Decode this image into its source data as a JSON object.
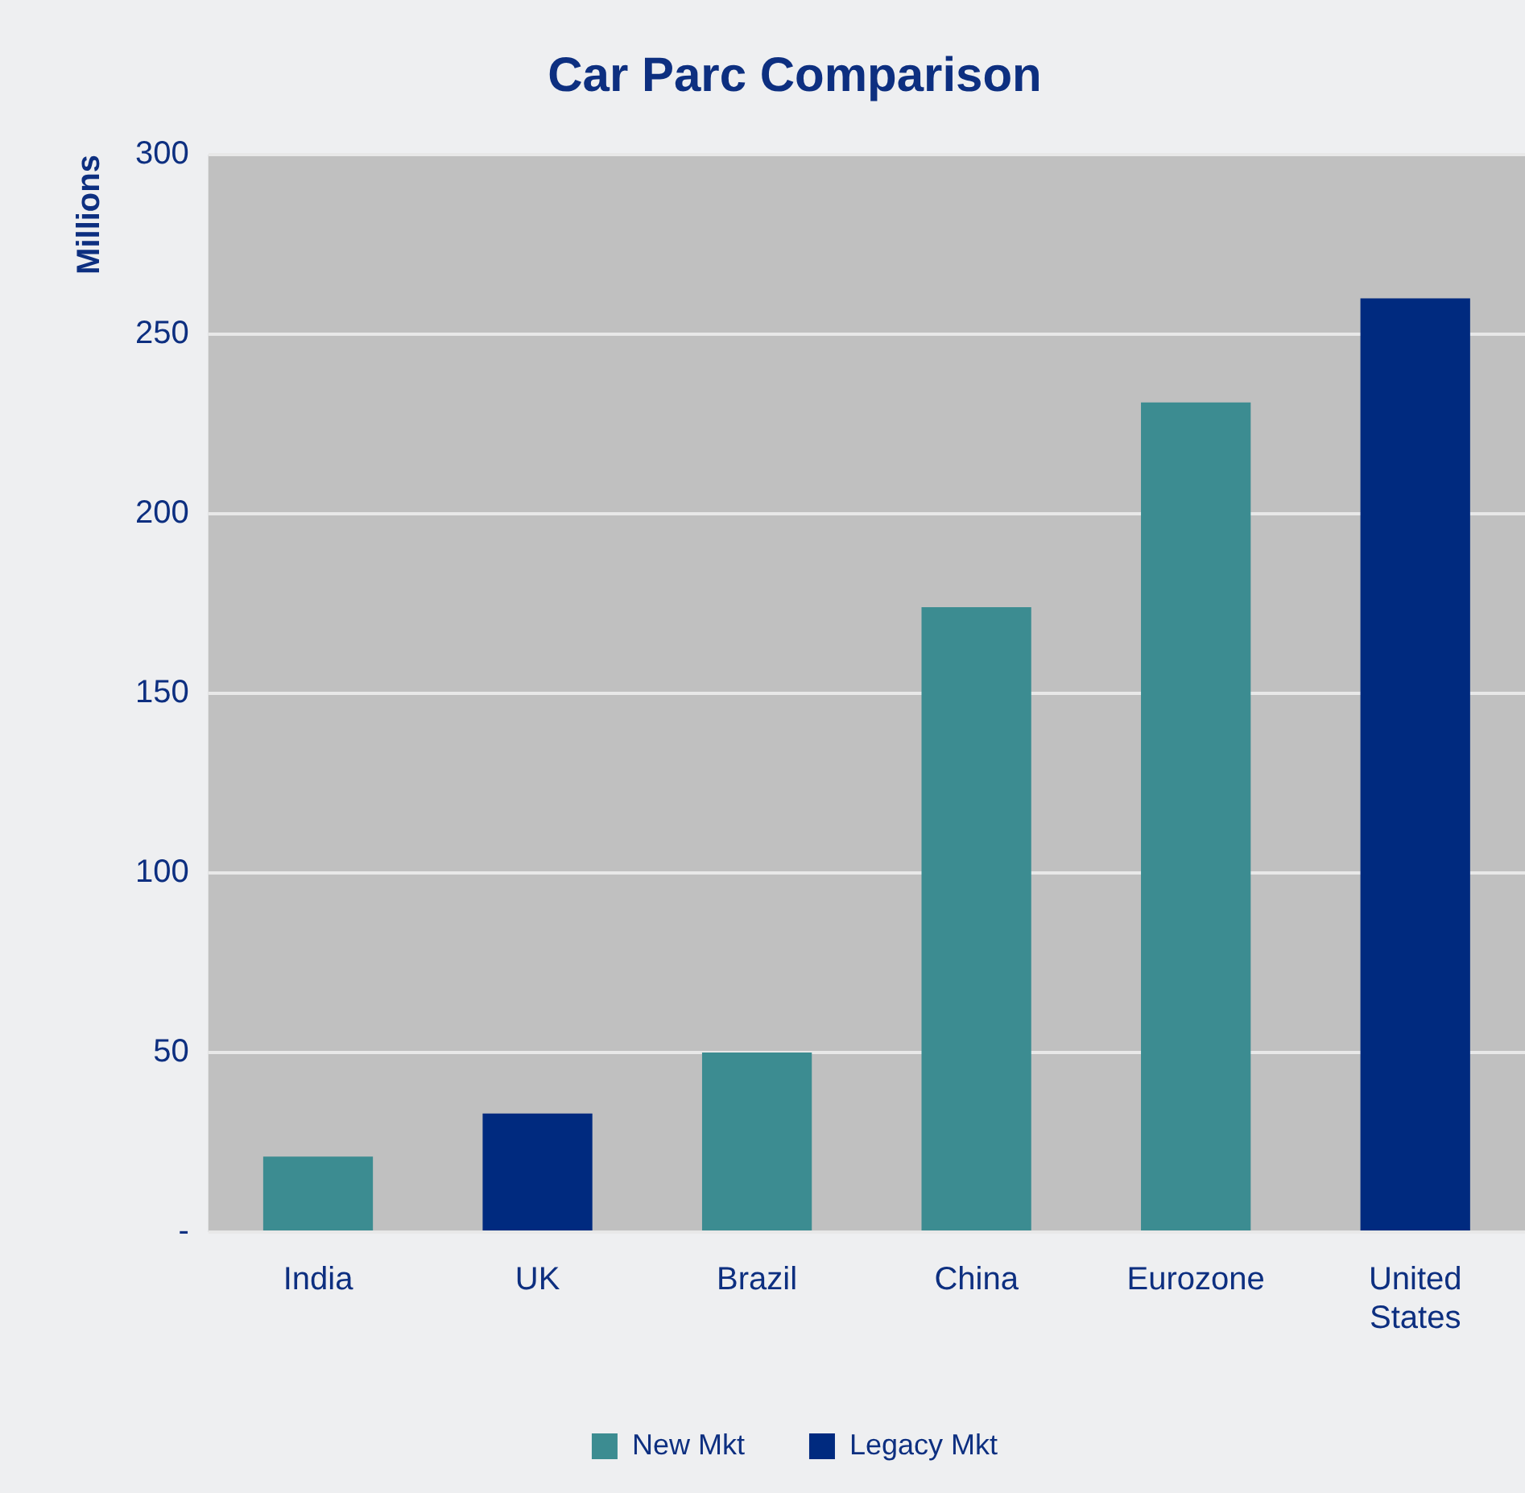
{
  "chart_data": {
    "type": "bar",
    "title": "Car Parc Comparison",
    "ylabel": "Millions",
    "categories": [
      "India",
      "UK",
      "Brazil",
      "China",
      "Eurozone",
      "United States"
    ],
    "series": [
      {
        "name": "New Mkt",
        "color": "#3c8c91",
        "values": [
          21,
          null,
          50,
          174,
          231,
          null
        ]
      },
      {
        "name": "Legacy Mkt",
        "color": "#002a7f",
        "values": [
          null,
          33,
          null,
          null,
          null,
          260
        ]
      }
    ],
    "stacked": true,
    "ylim": [
      0,
      300
    ],
    "yticks": [
      {
        "value": 0,
        "label": "-"
      },
      50,
      100,
      150,
      200,
      250,
      300
    ],
    "grid": "y",
    "legend": "bottom"
  }
}
